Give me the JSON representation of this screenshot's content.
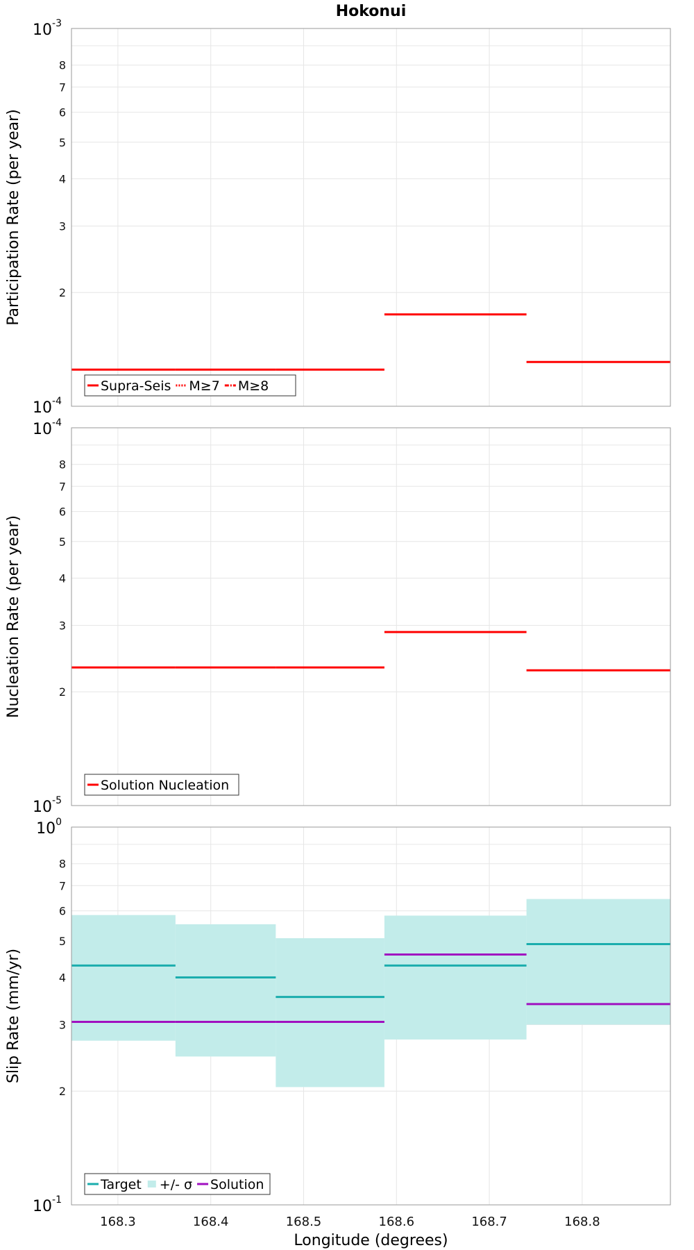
{
  "chart_data": [
    {
      "type": "line",
      "title": "Hokonui",
      "xlabel": "",
      "ylabel": "Participation Rate (per year)",
      "yscale": "log",
      "ylim": [
        0.0001,
        0.001
      ],
      "xlim": [
        168.25,
        168.895
      ],
      "y_minor_ticks": [
        {
          "value": 0.0002,
          "label": "2"
        },
        {
          "value": 0.0003,
          "label": "3"
        },
        {
          "value": 0.0004,
          "label": "4"
        },
        {
          "value": 0.0005,
          "label": "5"
        },
        {
          "value": 0.0006,
          "label": "6"
        },
        {
          "value": 0.0007,
          "label": "7"
        },
        {
          "value": 0.0008,
          "label": "8"
        }
      ],
      "y_decades": [
        {
          "value": 0.0001,
          "base": "10",
          "exp": "-4"
        },
        {
          "value": 0.001,
          "base": "10",
          "exp": "-3"
        }
      ],
      "grid": true,
      "legend_position": "bottom-left",
      "series": [
        {
          "name": "Supra-Seis",
          "color": "#ff0000",
          "style": "solid",
          "segments": [
            {
              "x": [
                168.25,
                168.362
              ],
              "y": 0.000125
            },
            {
              "x": [
                168.362,
                168.47
              ],
              "y": 0.000125
            },
            {
              "x": [
                168.47,
                168.587
              ],
              "y": 0.000125
            },
            {
              "x": [
                168.587,
                168.74
              ],
              "y": 0.000175
            },
            {
              "x": [
                168.74,
                168.895
              ],
              "y": 0.000131
            }
          ]
        },
        {
          "name": "M≥7",
          "color": "#ff0000",
          "style": "dotted",
          "segments": []
        },
        {
          "name": "M≥8",
          "color": "#ff0000",
          "style": "dashdot",
          "segments": []
        }
      ]
    },
    {
      "type": "line",
      "title": "",
      "xlabel": "",
      "ylabel": "Nucleation Rate (per year)",
      "yscale": "log",
      "ylim": [
        1e-05,
        0.0001
      ],
      "xlim": [
        168.25,
        168.895
      ],
      "y_minor_ticks": [
        {
          "value": 2e-05,
          "label": "2"
        },
        {
          "value": 3e-05,
          "label": "3"
        },
        {
          "value": 4e-05,
          "label": "4"
        },
        {
          "value": 5e-05,
          "label": "5"
        },
        {
          "value": 6e-05,
          "label": "6"
        },
        {
          "value": 7e-05,
          "label": "7"
        },
        {
          "value": 8e-05,
          "label": "8"
        }
      ],
      "y_decades": [
        {
          "value": 1e-05,
          "base": "10",
          "exp": "-5"
        },
        {
          "value": 0.0001,
          "base": "10",
          "exp": "-4"
        }
      ],
      "grid": true,
      "legend_position": "bottom-left",
      "series": [
        {
          "name": "Solution Nucleation",
          "color": "#ff0000",
          "style": "solid",
          "segments": [
            {
              "x": [
                168.25,
                168.362
              ],
              "y": 2.32e-05
            },
            {
              "x": [
                168.362,
                168.47
              ],
              "y": 2.32e-05
            },
            {
              "x": [
                168.47,
                168.587
              ],
              "y": 2.32e-05
            },
            {
              "x": [
                168.587,
                168.74
              ],
              "y": 2.88e-05
            },
            {
              "x": [
                168.74,
                168.895
              ],
              "y": 2.28e-05
            }
          ]
        }
      ]
    },
    {
      "type": "line",
      "title": "",
      "xlabel": "Longitude (degrees)",
      "ylabel": "Slip Rate (mm/yr)",
      "yscale": "log",
      "ylim": [
        0.1,
        1
      ],
      "xlim": [
        168.25,
        168.895
      ],
      "y_minor_ticks": [
        {
          "value": 0.2,
          "label": "2"
        },
        {
          "value": 0.3,
          "label": "3"
        },
        {
          "value": 0.4,
          "label": "4"
        },
        {
          "value": 0.5,
          "label": "5"
        },
        {
          "value": 0.6,
          "label": "6"
        },
        {
          "value": 0.7,
          "label": "7"
        },
        {
          "value": 0.8,
          "label": "8"
        }
      ],
      "y_decades": [
        {
          "value": 0.1,
          "base": "10",
          "exp": "-1"
        },
        {
          "value": 1,
          "base": "10",
          "exp": "0"
        }
      ],
      "x_ticks": [
        "168.3",
        "168.4",
        "168.5",
        "168.6",
        "168.7",
        "168.8"
      ],
      "grid": true,
      "legend_position": "bottom-left",
      "series": [
        {
          "name": "Target",
          "color": "#1aadad",
          "style": "solid",
          "segments": [
            {
              "x": [
                168.25,
                168.362
              ],
              "y": 0.43
            },
            {
              "x": [
                168.362,
                168.47
              ],
              "y": 0.4
            },
            {
              "x": [
                168.47,
                168.587
              ],
              "y": 0.355
            },
            {
              "x": [
                168.587,
                168.74
              ],
              "y": 0.43
            },
            {
              "x": [
                168.74,
                168.895
              ],
              "y": 0.49
            }
          ]
        },
        {
          "name": "+/- σ",
          "color": "#c2ecea",
          "style": "band",
          "segments": [
            {
              "x": [
                168.25,
                168.362
              ],
              "lo": 0.272,
              "hi": 0.585
            },
            {
              "x": [
                168.362,
                168.47
              ],
              "lo": 0.247,
              "hi": 0.553
            },
            {
              "x": [
                168.47,
                168.587
              ],
              "lo": 0.205,
              "hi": 0.508
            },
            {
              "x": [
                168.587,
                168.74
              ],
              "lo": 0.274,
              "hi": 0.583
            },
            {
              "x": [
                168.74,
                168.895
              ],
              "lo": 0.3,
              "hi": 0.645
            }
          ]
        },
        {
          "name": "Solution",
          "color": "#a010c0",
          "style": "solid",
          "segments": [
            {
              "x": [
                168.25,
                168.362
              ],
              "y": 0.305
            },
            {
              "x": [
                168.362,
                168.47
              ],
              "y": 0.305
            },
            {
              "x": [
                168.47,
                168.587
              ],
              "y": 0.305
            },
            {
              "x": [
                168.587,
                168.74
              ],
              "y": 0.46
            },
            {
              "x": [
                168.74,
                168.895
              ],
              "y": 0.34
            }
          ]
        }
      ]
    }
  ]
}
